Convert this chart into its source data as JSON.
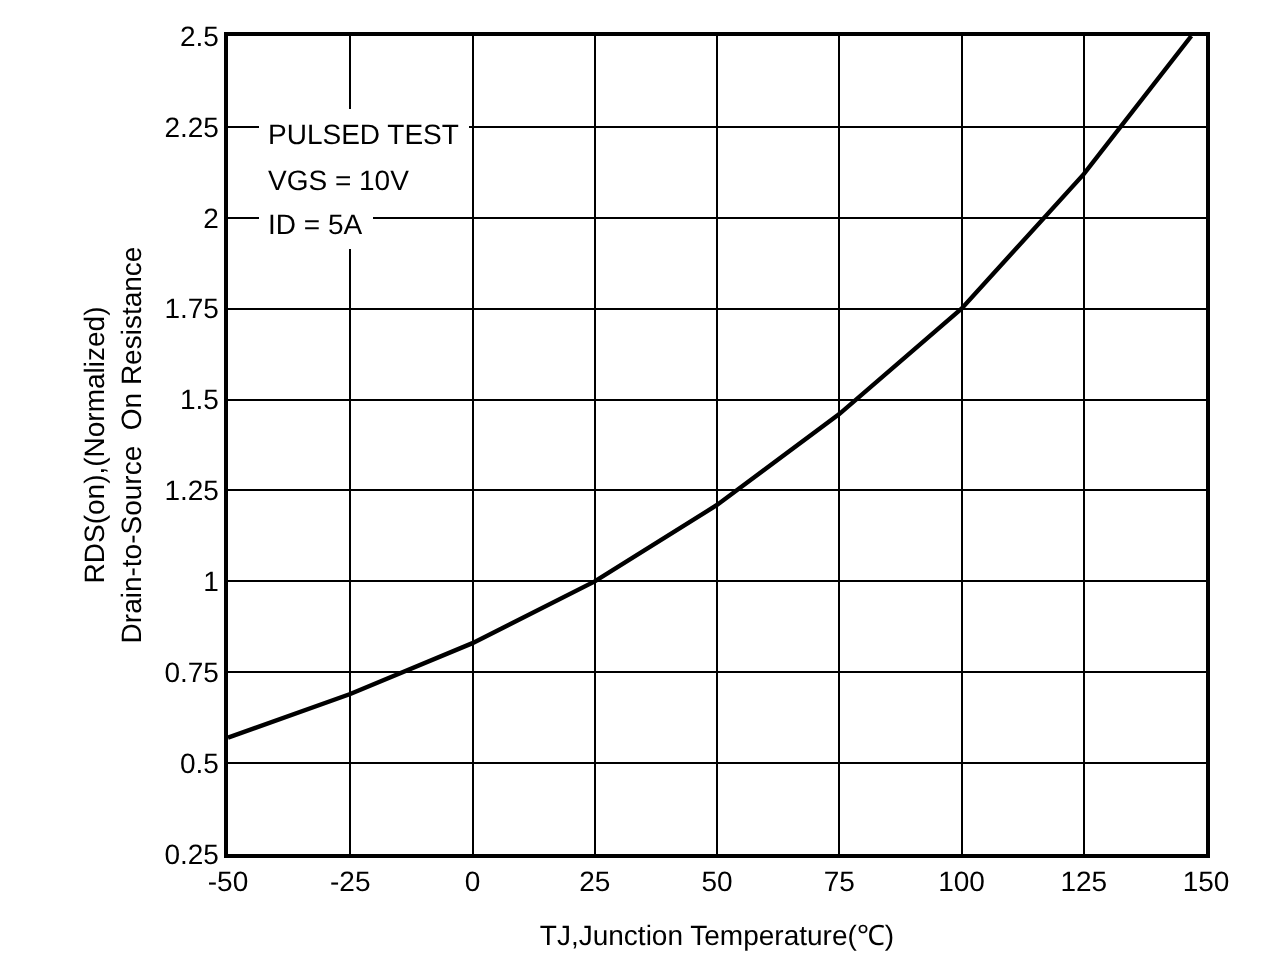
{
  "chart_data": {
    "type": "line",
    "xlabel": "TJ,Junction Temperature(℃)",
    "ylabel": "RDS(on),(Normalized)\nDrain-to-Source  On Resistance",
    "annotations": [
      "PULSED TEST",
      "VGS = 10V",
      "ID = 5A"
    ],
    "x": [
      -50,
      -25,
      0,
      25,
      50,
      75,
      100,
      125,
      147
    ],
    "series": [
      {
        "color": "#000000",
        "values": [
          0.57,
          0.69,
          0.83,
          1.0,
          1.21,
          1.46,
          1.75,
          2.12,
          2.5
        ]
      }
    ],
    "xlim": [
      -50,
      150
    ],
    "xticks": [
      -50,
      -25,
      0,
      25,
      50,
      75,
      100,
      125,
      150
    ],
    "ylim": [
      0.25,
      2.5
    ],
    "yticks": [
      0.25,
      0.5,
      0.75,
      1,
      1.25,
      1.5,
      1.75,
      2,
      2.25,
      2.5
    ],
    "grid": true,
    "marker": "none",
    "line_style": "solid"
  }
}
